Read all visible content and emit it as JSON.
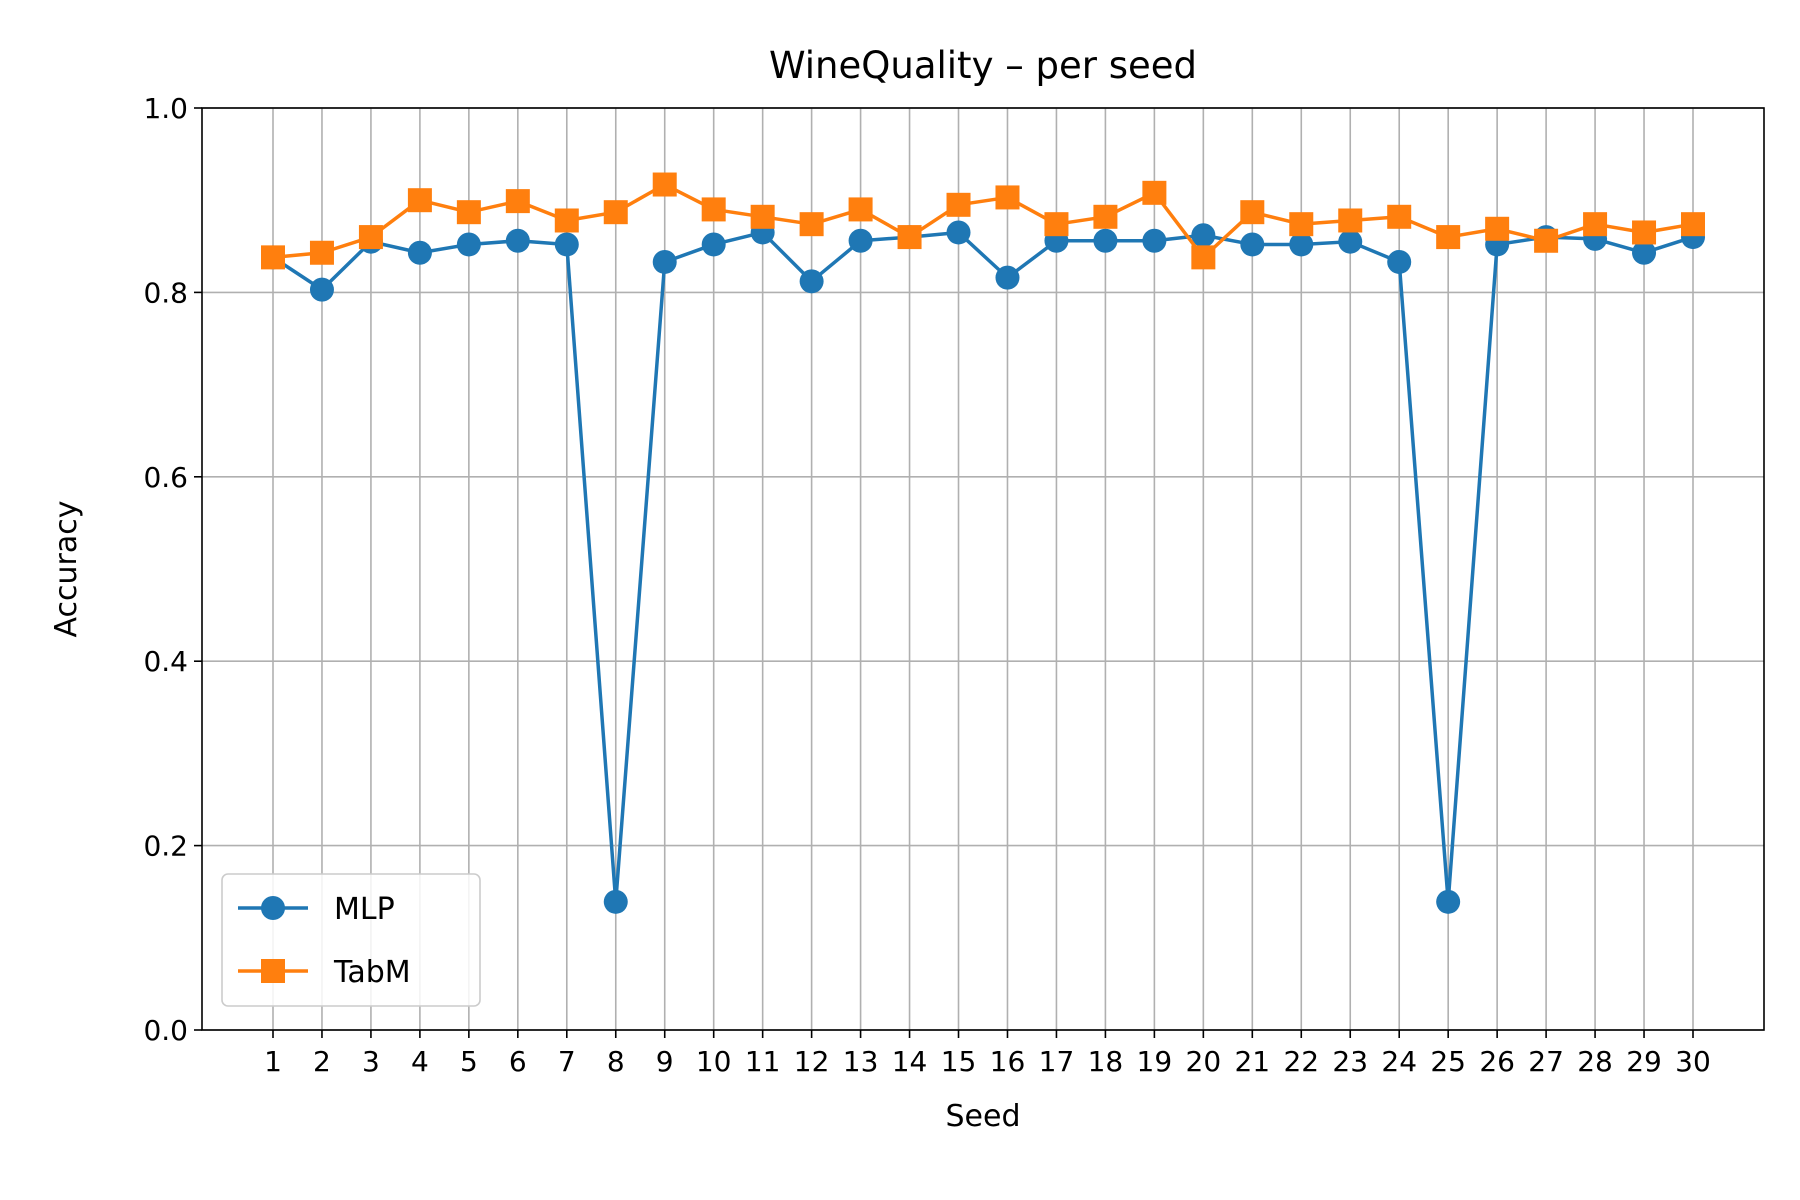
{
  "chart_data": {
    "type": "line",
    "title": "WineQuality – per seed",
    "xlabel": "Seed",
    "ylabel": "Accuracy",
    "ylim": [
      0.0,
      1.0
    ],
    "yticks": [
      "0.0",
      "0.2",
      "0.4",
      "0.6",
      "0.8",
      "1.0"
    ],
    "x": [
      1,
      2,
      3,
      4,
      5,
      6,
      7,
      8,
      9,
      10,
      11,
      12,
      13,
      14,
      15,
      16,
      17,
      18,
      19,
      20,
      21,
      22,
      23,
      24,
      25,
      26,
      27,
      28,
      29,
      30
    ],
    "grid": true,
    "legend_position": "lower-left",
    "series": [
      {
        "name": "MLP",
        "color": "#1f77b4",
        "marker": "circle",
        "values": [
          0.838,
          0.803,
          0.855,
          0.843,
          0.852,
          0.856,
          0.852,
          0.139,
          0.833,
          0.852,
          0.865,
          0.812,
          0.856,
          0.86,
          0.865,
          0.816,
          0.856,
          0.856,
          0.856,
          0.862,
          0.852,
          0.852,
          0.855,
          0.833,
          0.139,
          0.852,
          0.86,
          0.858,
          0.843,
          0.86
        ]
      },
      {
        "name": "TabM",
        "color": "#ff7f0e",
        "marker": "square",
        "values": [
          0.838,
          0.843,
          0.86,
          0.9,
          0.887,
          0.899,
          0.878,
          0.887,
          0.917,
          0.89,
          0.882,
          0.874,
          0.89,
          0.86,
          0.895,
          0.903,
          0.874,
          0.882,
          0.908,
          0.838,
          0.887,
          0.874,
          0.878,
          0.882,
          0.86,
          0.869,
          0.856,
          0.874,
          0.865,
          0.874
        ]
      }
    ]
  }
}
